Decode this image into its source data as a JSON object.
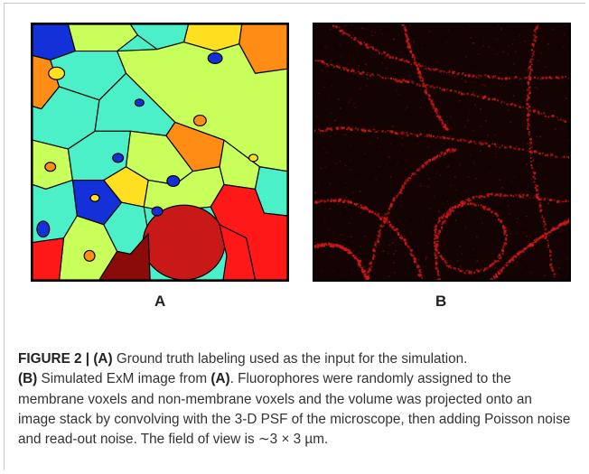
{
  "figure": {
    "panel_a_label": "A",
    "panel_b_label": "B",
    "caption": {
      "fig_id": "FIGURE 2 |",
      "ref_a": "(A)",
      "part1": " Ground truth labeling used as the input for the simulation.",
      "ref_b": "(B)",
      "part2": " Simulated ExM image from ",
      "ref_a2": "(A)",
      "part3": ". Fluorophores were randomly assigned to the membrane voxels and non-membrane voxels and the volume was projected onto an image stack by convolving with the 3-D PSF of the microscope, then adding Poisson noise and read-out noise. The field of view is ∼3 × 3 µm."
    }
  },
  "colors": {
    "membrane": "#000000",
    "fluorescence": "#d01818",
    "background_b": "#140303"
  }
}
